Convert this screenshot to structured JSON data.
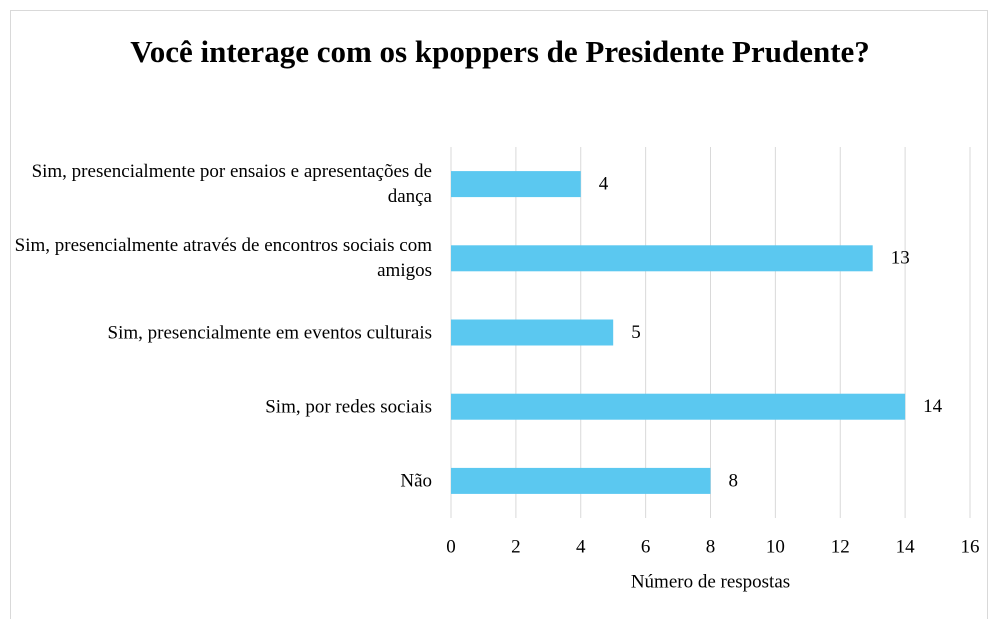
{
  "chart_data": {
    "type": "bar",
    "orientation": "horizontal",
    "title": "Você interage com os kpoppers de Presidente Prudente?",
    "categories": [
      "Sim, presencialmente por ensaios e apresentações de dança",
      "Sim, presencialmente através de encontros sociais com amigos",
      "Sim, presencialmente em eventos culturais",
      "Sim, por redes sociais",
      "Não"
    ],
    "values": [
      4,
      13,
      5,
      14,
      8
    ],
    "color": "#5bc8f0",
    "x_label": "Número de respostas",
    "xlim": [
      0,
      16
    ],
    "xticks": [
      0,
      2,
      4,
      6,
      8,
      10,
      12,
      14,
      16
    ],
    "grid": true
  }
}
